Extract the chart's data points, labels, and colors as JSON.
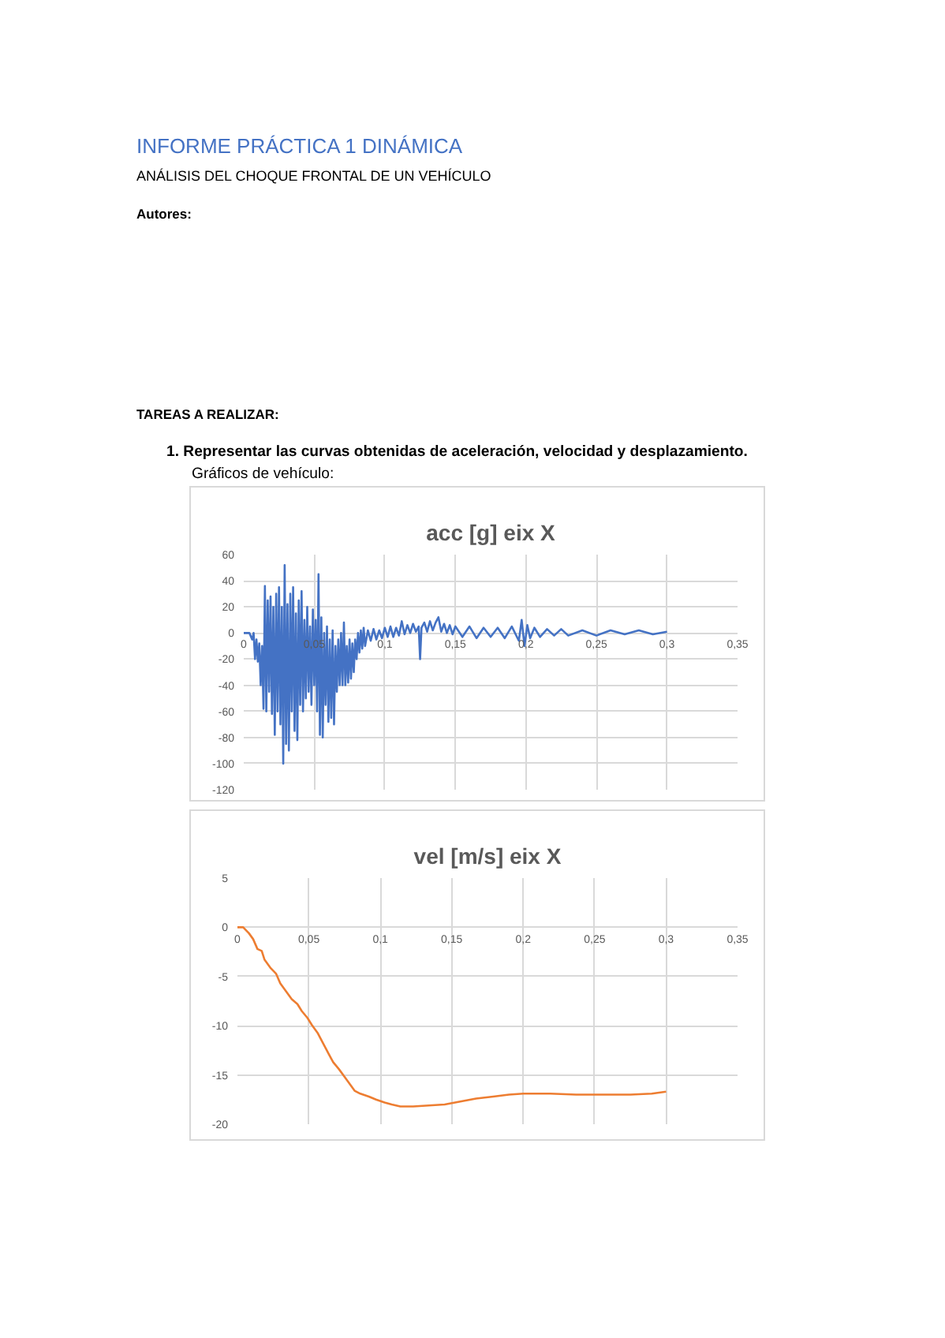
{
  "chart_data": [
    {
      "type": "other",
      "title": "INFORME PRÁCTICA 1 DINÁMICA",
      "subtitle": "ANÁLISIS DEL CHOQUE FRONTAL DE UN VEHÍCULO",
      "annotations": [
        "Autores:",
        "TAREAS A REALIZAR:",
        "1. Representar las curvas obtenidas de aceleración, velocidad y desplazamiento.",
        "Gráficos de vehículo:"
      ]
    },
    {
      "type": "line",
      "title": "acc [g] eix X",
      "x": [
        0,
        0.004,
        0.006,
        0.007,
        0.008,
        0.009,
        0.01,
        0.011,
        0.012,
        0.013,
        0.014,
        0.015,
        0.016,
        0.017,
        0.018,
        0.019,
        0.02,
        0.021,
        0.022,
        0.023,
        0.024,
        0.025,
        0.026,
        0.027,
        0.028,
        0.029,
        0.03,
        0.031,
        0.032,
        0.033,
        0.034,
        0.035,
        0.036,
        0.037,
        0.038,
        0.039,
        0.04,
        0.041,
        0.042,
        0.043,
        0.044,
        0.045,
        0.046,
        0.047,
        0.048,
        0.049,
        0.05,
        0.051,
        0.052,
        0.053,
        0.054,
        0.055,
        0.056,
        0.057,
        0.058,
        0.059,
        0.06,
        0.061,
        0.062,
        0.063,
        0.064,
        0.065,
        0.066,
        0.067,
        0.068,
        0.069,
        0.07,
        0.071,
        0.072,
        0.073,
        0.074,
        0.075,
        0.076,
        0.077,
        0.078,
        0.079,
        0.08,
        0.081,
        0.082,
        0.083,
        0.084,
        0.085,
        0.086,
        0.088,
        0.09,
        0.092,
        0.094,
        0.096,
        0.098,
        0.1,
        0.102,
        0.104,
        0.106,
        0.108,
        0.11,
        0.112,
        0.114,
        0.116,
        0.118,
        0.12,
        0.122,
        0.124,
        0.125,
        0.126,
        0.128,
        0.13,
        0.132,
        0.134,
        0.136,
        0.138,
        0.14,
        0.142,
        0.144,
        0.146,
        0.148,
        0.15,
        0.155,
        0.16,
        0.165,
        0.17,
        0.175,
        0.18,
        0.185,
        0.19,
        0.195,
        0.197,
        0.199,
        0.201,
        0.203,
        0.206,
        0.21,
        0.215,
        0.22,
        0.225,
        0.23,
        0.24,
        0.25,
        0.26,
        0.27,
        0.28,
        0.29,
        0.3
      ],
      "series": [
        {
          "color": "#4472c4",
          "values": [
            0,
            0,
            -5,
            0,
            -20,
            -5,
            -22,
            -8,
            -40,
            -10,
            -58,
            36,
            -60,
            25,
            -45,
            28,
            -62,
            20,
            -78,
            30,
            -60,
            35,
            -70,
            20,
            -100,
            52,
            -85,
            22,
            -90,
            30,
            -60,
            35,
            -75,
            15,
            -82,
            25,
            -55,
            32,
            -60,
            10,
            -50,
            20,
            -45,
            5,
            -55,
            18,
            -40,
            10,
            -60,
            45,
            -78,
            12,
            -80,
            0,
            -55,
            5,
            -68,
            -5,
            -65,
            2,
            -70,
            -10,
            -45,
            -5,
            -40,
            0,
            -40,
            8,
            -40,
            -10,
            -38,
            -5,
            -35,
            -8,
            -30,
            -5,
            -20,
            0,
            -15,
            2,
            -12,
            4,
            -10,
            2,
            -6,
            3,
            -5,
            2,
            -4,
            4,
            -3,
            5,
            -3,
            4,
            -2,
            9,
            -1,
            6,
            0,
            7,
            1,
            5,
            -20,
            4,
            8,
            1,
            9,
            2,
            8,
            12,
            1,
            7,
            0,
            6,
            -1,
            5,
            -3,
            5,
            -4,
            4,
            -3,
            4,
            -4,
            5,
            -6,
            10,
            -10,
            6,
            -4,
            4,
            -3,
            3,
            -2,
            3,
            -2,
            2,
            -2,
            2,
            -1,
            2,
            -1,
            1
          ]
        }
      ],
      "xlim": [
        0,
        0.35
      ],
      "ylim": [
        -120,
        60
      ],
      "xticks": [
        0,
        {
          "value": 0.05,
          "label": "0,05"
        },
        {
          "value": 0.1,
          "label": "0,1"
        },
        {
          "value": 0.15,
          "label": "0,15"
        },
        {
          "value": 0.2,
          "label": "0,2"
        },
        {
          "value": 0.25,
          "label": "0,25"
        },
        {
          "value": 0.3,
          "label": "0,3"
        },
        {
          "value": 0.35,
          "label": "0,35"
        }
      ],
      "yticks": [
        -120,
        -100,
        -80,
        -60,
        -40,
        -20,
        0,
        20,
        40,
        60
      ],
      "grid": true
    },
    {
      "type": "line",
      "title": "vel [m/s] eix X",
      "x": [
        0,
        0.004,
        0.008,
        0.011,
        0.014,
        0.017,
        0.019,
        0.023,
        0.027,
        0.03,
        0.034,
        0.038,
        0.042,
        0.045,
        0.049,
        0.052,
        0.056,
        0.06,
        0.064,
        0.067,
        0.071,
        0.075,
        0.079,
        0.082,
        0.086,
        0.092,
        0.097,
        0.103,
        0.108,
        0.114,
        0.123,
        0.134,
        0.145,
        0.156,
        0.167,
        0.179,
        0.19,
        0.2,
        0.219,
        0.237,
        0.256,
        0.275,
        0.29,
        0.3
      ],
      "series": [
        {
          "color": "#ed7d31",
          "values": [
            0,
            0,
            -0.6,
            -1.2,
            -2.2,
            -2.4,
            -3.3,
            -4.1,
            -4.7,
            -5.7,
            -6.5,
            -7.3,
            -7.8,
            -8.5,
            -9.2,
            -9.9,
            -10.7,
            -11.8,
            -12.9,
            -13.7,
            -14.4,
            -15.2,
            -16,
            -16.6,
            -16.9,
            -17.2,
            -17.5,
            -17.8,
            -18,
            -18.2,
            -18.2,
            -18.1,
            -18,
            -17.7,
            -17.4,
            -17.2,
            -17,
            -16.9,
            -16.9,
            -17,
            -17,
            -17,
            -16.9,
            -16.7
          ]
        }
      ],
      "xlim": [
        0,
        0.35
      ],
      "ylim": [
        -20,
        5
      ],
      "xticks": [
        0,
        {
          "value": 0.05,
          "label": "0,05"
        },
        {
          "value": 0.1,
          "label": "0,1"
        },
        {
          "value": 0.15,
          "label": "0,15"
        },
        {
          "value": 0.2,
          "label": "0,2"
        },
        {
          "value": 0.25,
          "label": "0,25"
        },
        {
          "value": 0.3,
          "label": "0,3"
        },
        {
          "value": 0.35,
          "label": "0,35"
        }
      ],
      "yticks": [
        -20,
        -15,
        -10,
        -5,
        0,
        5
      ],
      "grid": true
    }
  ]
}
